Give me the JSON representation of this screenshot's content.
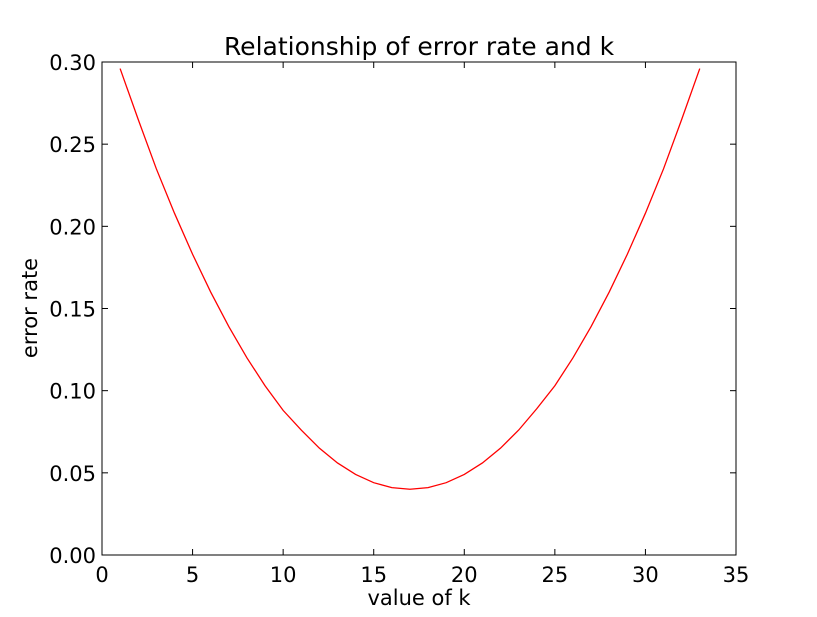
{
  "chart_data": {
    "type": "line",
    "title": "Relationship of error rate and k",
    "xlabel": "value of k",
    "ylabel": "error rate",
    "xlim": [
      0,
      35
    ],
    "ylim": [
      0.0,
      0.3
    ],
    "xticks": [
      "0",
      "5",
      "10",
      "15",
      "20",
      "25",
      "30",
      "35"
    ],
    "yticks": [
      "0.00",
      "0.05",
      "0.10",
      "0.15",
      "0.20",
      "0.25",
      "0.30"
    ],
    "grid": false,
    "series": [
      {
        "color": "#ff0000",
        "x": [
          1,
          2,
          3,
          4,
          5,
          6,
          7,
          8,
          9,
          10,
          11,
          12,
          13,
          14,
          15,
          16,
          17,
          18,
          19,
          20,
          21,
          22,
          23,
          24,
          25,
          26,
          27,
          28,
          29,
          30,
          31,
          32,
          33
        ],
        "y": [
          0.296,
          0.265,
          0.235,
          0.208,
          0.183,
          0.16,
          0.139,
          0.12,
          0.103,
          0.088,
          0.076,
          0.065,
          0.056,
          0.049,
          0.044,
          0.041,
          0.04,
          0.041,
          0.044,
          0.049,
          0.056,
          0.065,
          0.076,
          0.089,
          0.103,
          0.12,
          0.139,
          0.16,
          0.183,
          0.208,
          0.235,
          0.265,
          0.296
        ]
      }
    ]
  }
}
